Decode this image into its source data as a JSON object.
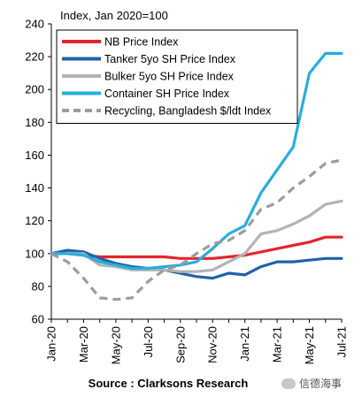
{
  "chart_data": {
    "type": "line",
    "unit_label": "Index, Jan 2020=100",
    "x": [
      "Jan-20",
      "Feb-20",
      "Mar-20",
      "Apr-20",
      "May-20",
      "Jun-20",
      "Jul-20",
      "Aug-20",
      "Sep-20",
      "Oct-20",
      "Nov-20",
      "Dec-20",
      "Jan-21",
      "Feb-21",
      "Mar-21",
      "Apr-21",
      "May-21",
      "Jun-21",
      "Jul-21"
    ],
    "x_tick_labels": [
      "Jan-20",
      "Mar-20",
      "May-20",
      "Jul-20",
      "Sep-20",
      "Nov-20",
      "Jan-21",
      "Mar-21",
      "May-21",
      "Jul-21"
    ],
    "ylim": [
      60,
      240
    ],
    "y_ticks": [
      60,
      80,
      100,
      120,
      140,
      160,
      180,
      200,
      220,
      240
    ],
    "grid": false,
    "legend_position": "top-left",
    "series": [
      {
        "name": "NB Price Index",
        "color": "#e3262c",
        "style": "solid",
        "values": [
          100,
          100,
          99,
          98,
          98,
          98,
          98,
          98,
          97,
          97,
          97,
          98,
          99,
          101,
          103,
          105,
          107,
          110,
          110
        ]
      },
      {
        "name": "Tanker 5yo SH Price Index",
        "color": "#1f63a8",
        "style": "solid",
        "values": [
          100,
          102,
          101,
          97,
          94,
          92,
          91,
          90,
          88,
          86,
          85,
          88,
          87,
          92,
          95,
          95,
          96,
          97,
          97
        ]
      },
      {
        "name": "Bulker 5yo SH Price Index",
        "color": "#b3b3b3",
        "style": "solid",
        "values": [
          100,
          100,
          100,
          93,
          92,
          90,
          90,
          90,
          89,
          89,
          90,
          95,
          100,
          112,
          114,
          118,
          123,
          130,
          132
        ]
      },
      {
        "name": "Container SH Price Index",
        "color": "#27aedd",
        "style": "solid",
        "values": [
          100,
          100,
          99,
          95,
          93,
          91,
          91,
          92,
          93,
          95,
          103,
          112,
          117,
          137,
          151,
          165,
          210,
          222,
          222
        ]
      },
      {
        "name": "Recycling, Bangladesh $/ldt Index",
        "color": "#9c9c9c",
        "style": "dashed",
        "values": [
          100,
          95,
          85,
          73,
          72,
          73,
          83,
          90,
          93,
          100,
          106,
          108,
          114,
          127,
          131,
          140,
          147,
          155,
          157
        ]
      }
    ]
  },
  "footer": {
    "source": "Source : Clarksons Research",
    "watermark": "信德海事"
  }
}
